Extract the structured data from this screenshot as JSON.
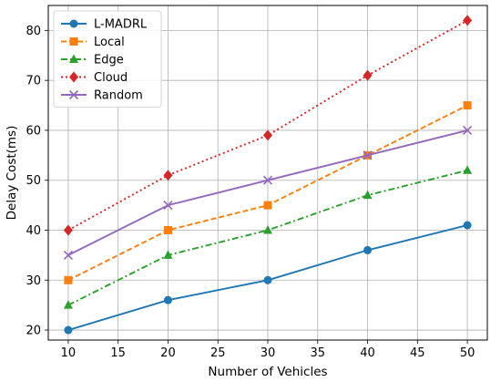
{
  "chart_data": {
    "type": "line",
    "xlabel": "Number of Vehicles",
    "ylabel": "Delay Cost(ms)",
    "x": [
      10,
      20,
      30,
      40,
      50
    ],
    "xlim": [
      8,
      52
    ],
    "ylim": [
      18,
      85
    ],
    "xticks": [
      10,
      15,
      20,
      25,
      30,
      35,
      40,
      45,
      50
    ],
    "yticks": [
      20,
      30,
      40,
      50,
      60,
      70,
      80
    ],
    "grid": true,
    "legend_position": "top-left",
    "series": [
      {
        "name": "L-MADRL",
        "values": [
          20,
          26,
          30,
          36,
          41
        ],
        "color": "#1f77b4",
        "dash": "solid",
        "marker": "circle"
      },
      {
        "name": "Local",
        "values": [
          30,
          40,
          45,
          55,
          65
        ],
        "color": "#ff7f0e",
        "dash": "dashed",
        "marker": "square"
      },
      {
        "name": "Edge",
        "values": [
          25,
          35,
          40,
          47,
          52
        ],
        "color": "#2ca02c",
        "dash": "dashdot",
        "marker": "triangle"
      },
      {
        "name": "Cloud",
        "values": [
          40,
          51,
          59,
          71,
          82
        ],
        "color": "#d62728",
        "dash": "dotted",
        "marker": "diamond"
      },
      {
        "name": "Random",
        "values": [
          35,
          45,
          50,
          55,
          60
        ],
        "color": "#9467bd",
        "dash": "solid",
        "marker": "x"
      }
    ]
  }
}
